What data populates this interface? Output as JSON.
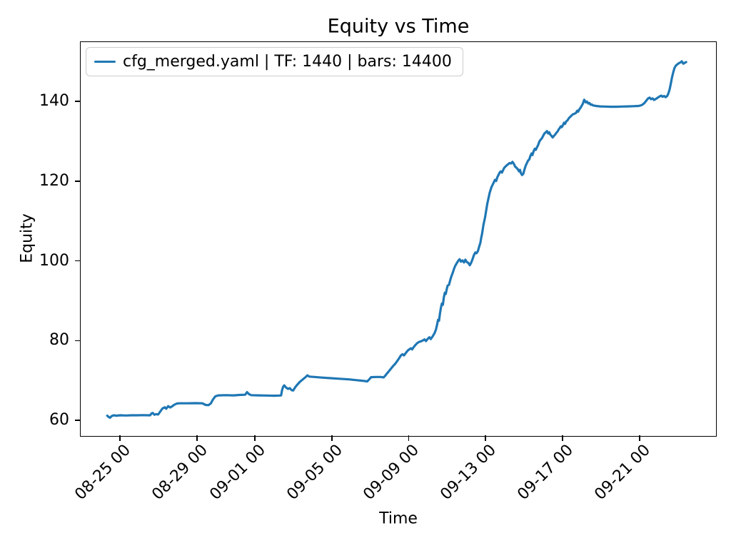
{
  "chart_data": {
    "type": "line",
    "title": "Equity vs Time",
    "xlabel": "Time",
    "ylabel": "Equity",
    "grid": false,
    "legend_position": "upper left",
    "line_color": "#1f77b4",
    "x_unit": "days relative to the 08-25 00 tick",
    "xlim": [
      -2.05,
      30.98
    ],
    "ylim": [
      56.3,
      154.8
    ],
    "x_ticks": [
      {
        "t": 0,
        "label": "08-25 00"
      },
      {
        "t": 4,
        "label": "08-29 00"
      },
      {
        "t": 7,
        "label": "09-01 00"
      },
      {
        "t": 11,
        "label": "09-05 00"
      },
      {
        "t": 15,
        "label": "09-09 00"
      },
      {
        "t": 19,
        "label": "09-13 00"
      },
      {
        "t": 23,
        "label": "09-17 00"
      },
      {
        "t": 27,
        "label": "09-21 00"
      }
    ],
    "y_ticks": [
      60,
      80,
      100,
      120,
      140
    ],
    "series": [
      {
        "name": "cfg_merged.yaml | TF: 1440 | bars: 14400",
        "color": "#1f77b4",
        "points": [
          [
            -0.67,
            61.2
          ],
          [
            -0.6,
            60.9
          ],
          [
            -0.52,
            60.7
          ],
          [
            -0.44,
            61.1
          ],
          [
            -0.33,
            61.3
          ],
          [
            -0.2,
            61.2
          ],
          [
            0.0,
            61.3
          ],
          [
            0.3,
            61.25
          ],
          [
            0.6,
            61.3
          ],
          [
            0.9,
            61.3
          ],
          [
            1.2,
            61.35
          ],
          [
            1.45,
            61.3
          ],
          [
            1.56,
            61.3
          ],
          [
            1.63,
            61.75
          ],
          [
            1.7,
            61.9
          ],
          [
            1.78,
            61.45
          ],
          [
            1.88,
            61.6
          ],
          [
            1.98,
            61.5
          ],
          [
            2.08,
            62.2
          ],
          [
            2.2,
            63.0
          ],
          [
            2.32,
            63.3
          ],
          [
            2.4,
            62.95
          ],
          [
            2.5,
            63.6
          ],
          [
            2.6,
            63.25
          ],
          [
            2.72,
            63.6
          ],
          [
            2.8,
            63.9
          ],
          [
            2.95,
            64.25
          ],
          [
            3.1,
            64.3
          ],
          [
            3.5,
            64.3
          ],
          [
            3.9,
            64.35
          ],
          [
            4.27,
            64.3
          ],
          [
            4.45,
            63.9
          ],
          [
            4.6,
            63.85
          ],
          [
            4.72,
            64.3
          ],
          [
            4.82,
            65.2
          ],
          [
            4.95,
            66.05
          ],
          [
            5.1,
            66.3
          ],
          [
            5.5,
            66.35
          ],
          [
            5.9,
            66.3
          ],
          [
            6.2,
            66.4
          ],
          [
            6.5,
            66.45
          ],
          [
            6.6,
            67.1
          ],
          [
            6.7,
            66.6
          ],
          [
            6.82,
            66.35
          ],
          [
            7.2,
            66.3
          ],
          [
            7.6,
            66.25
          ],
          [
            8.0,
            66.2
          ],
          [
            8.3,
            66.25
          ],
          [
            8.37,
            66.3
          ],
          [
            8.42,
            67.6
          ],
          [
            8.47,
            68.4
          ],
          [
            8.53,
            68.8
          ],
          [
            8.62,
            68.3
          ],
          [
            8.73,
            67.9
          ],
          [
            8.82,
            68.1
          ],
          [
            8.92,
            67.6
          ],
          [
            9.0,
            67.5
          ],
          [
            9.1,
            68.3
          ],
          [
            9.2,
            68.9
          ],
          [
            9.35,
            69.7
          ],
          [
            9.5,
            70.3
          ],
          [
            9.65,
            70.9
          ],
          [
            9.73,
            71.3
          ],
          [
            9.85,
            71.0
          ],
          [
            10.1,
            70.9
          ],
          [
            10.5,
            70.75
          ],
          [
            10.95,
            70.6
          ],
          [
            11.4,
            70.45
          ],
          [
            11.9,
            70.3
          ],
          [
            12.3,
            70.1
          ],
          [
            12.6,
            69.95
          ],
          [
            12.85,
            69.8
          ],
          [
            12.95,
            70.3
          ],
          [
            13.05,
            70.85
          ],
          [
            13.3,
            70.9
          ],
          [
            13.55,
            70.9
          ],
          [
            13.7,
            70.8
          ],
          [
            13.78,
            71.2
          ],
          [
            13.88,
            71.8
          ],
          [
            14.0,
            72.5
          ],
          [
            14.1,
            73.1
          ],
          [
            14.2,
            73.7
          ],
          [
            14.3,
            74.2
          ],
          [
            14.42,
            75.0
          ],
          [
            14.52,
            75.7
          ],
          [
            14.6,
            76.3
          ],
          [
            14.68,
            76.6
          ],
          [
            14.76,
            76.3
          ],
          [
            14.85,
            76.9
          ],
          [
            14.95,
            77.5
          ],
          [
            15.05,
            77.9
          ],
          [
            15.12,
            78.1
          ],
          [
            15.18,
            77.8
          ],
          [
            15.25,
            78.3
          ],
          [
            15.35,
            78.9
          ],
          [
            15.45,
            79.4
          ],
          [
            15.55,
            79.7
          ],
          [
            15.65,
            79.85
          ],
          [
            15.75,
            80.1
          ],
          [
            15.83,
            80.3
          ],
          [
            15.9,
            79.9
          ],
          [
            16.0,
            80.5
          ],
          [
            16.08,
            80.85
          ],
          [
            16.15,
            80.4
          ],
          [
            16.25,
            81.1
          ],
          [
            16.35,
            81.9
          ],
          [
            16.42,
            82.8
          ],
          [
            16.48,
            84.0
          ],
          [
            16.53,
            85.2
          ],
          [
            16.58,
            85.0
          ],
          [
            16.63,
            86.8
          ],
          [
            16.68,
            88.3
          ],
          [
            16.73,
            89.3
          ],
          [
            16.78,
            89.0
          ],
          [
            16.83,
            90.8
          ],
          [
            16.88,
            92.0
          ],
          [
            16.93,
            91.7
          ],
          [
            16.98,
            92.9
          ],
          [
            17.03,
            93.8
          ],
          [
            17.1,
            94.0
          ],
          [
            17.17,
            95.3
          ],
          [
            17.23,
            96.2
          ],
          [
            17.3,
            97.1
          ],
          [
            17.36,
            98.0
          ],
          [
            17.42,
            98.7
          ],
          [
            17.5,
            99.4
          ],
          [
            17.58,
            100.0
          ],
          [
            17.65,
            100.4
          ],
          [
            17.72,
            99.8
          ],
          [
            17.8,
            100.1
          ],
          [
            17.88,
            99.6
          ],
          [
            17.95,
            100.3
          ],
          [
            18.02,
            99.7
          ],
          [
            18.1,
            99.5
          ],
          [
            18.18,
            98.9
          ],
          [
            18.25,
            99.5
          ],
          [
            18.32,
            100.4
          ],
          [
            18.4,
            101.5
          ],
          [
            18.47,
            102.1
          ],
          [
            18.53,
            101.9
          ],
          [
            18.6,
            102.4
          ],
          [
            18.67,
            103.6
          ],
          [
            18.73,
            104.5
          ],
          [
            18.77,
            105.7
          ],
          [
            18.81,
            106.6
          ],
          [
            18.85,
            107.8
          ],
          [
            18.89,
            109.0
          ],
          [
            18.93,
            109.9
          ],
          [
            18.97,
            110.8
          ],
          [
            19.01,
            112.0
          ],
          [
            19.05,
            113.1
          ],
          [
            19.09,
            114.3
          ],
          [
            19.13,
            115.2
          ],
          [
            19.17,
            116.1
          ],
          [
            19.21,
            117.0
          ],
          [
            19.25,
            117.6
          ],
          [
            19.31,
            118.5
          ],
          [
            19.37,
            119.1
          ],
          [
            19.43,
            119.7
          ],
          [
            19.49,
            120.3
          ],
          [
            19.55,
            120.0
          ],
          [
            19.61,
            120.9
          ],
          [
            19.67,
            121.5
          ],
          [
            19.73,
            122.1
          ],
          [
            19.79,
            122.4
          ],
          [
            19.85,
            122.1
          ],
          [
            19.91,
            122.7
          ],
          [
            19.97,
            123.3
          ],
          [
            20.03,
            123.6
          ],
          [
            20.09,
            123.9
          ],
          [
            20.17,
            124.2
          ],
          [
            20.25,
            124.5
          ],
          [
            20.33,
            124.4
          ],
          [
            20.4,
            124.8
          ],
          [
            20.47,
            124.3
          ],
          [
            20.54,
            123.6
          ],
          [
            20.61,
            123.3
          ],
          [
            20.68,
            122.9
          ],
          [
            20.74,
            122.4
          ],
          [
            20.79,
            122.8
          ],
          [
            20.84,
            121.9
          ],
          [
            20.9,
            121.5
          ],
          [
            20.96,
            121.8
          ],
          [
            21.03,
            123.0
          ],
          [
            21.09,
            123.9
          ],
          [
            21.15,
            124.5
          ],
          [
            21.21,
            125.1
          ],
          [
            21.27,
            125.4
          ],
          [
            21.33,
            126.3
          ],
          [
            21.39,
            126.9
          ],
          [
            21.44,
            126.5
          ],
          [
            21.5,
            127.5
          ],
          [
            21.56,
            128.1
          ],
          [
            21.61,
            127.8
          ],
          [
            21.67,
            128.4
          ],
          [
            21.73,
            129.0
          ],
          [
            21.8,
            129.9
          ],
          [
            21.87,
            130.4
          ],
          [
            21.93,
            130.7
          ],
          [
            21.99,
            131.3
          ],
          [
            22.06,
            131.9
          ],
          [
            22.13,
            132.2
          ],
          [
            22.19,
            132.5
          ],
          [
            22.25,
            131.9
          ],
          [
            22.31,
            132.2
          ],
          [
            22.37,
            131.6
          ],
          [
            22.43,
            131.3
          ],
          [
            22.49,
            130.9
          ],
          [
            22.55,
            131.3
          ],
          [
            22.61,
            131.6
          ],
          [
            22.67,
            132.0
          ],
          [
            22.74,
            132.4
          ],
          [
            22.8,
            132.9
          ],
          [
            22.86,
            133.3
          ],
          [
            22.91,
            133.7
          ],
          [
            22.96,
            133.5
          ],
          [
            23.02,
            134.0
          ],
          [
            23.08,
            134.6
          ],
          [
            23.13,
            134.3
          ],
          [
            23.19,
            134.9
          ],
          [
            23.26,
            135.2
          ],
          [
            23.34,
            135.8
          ],
          [
            23.41,
            136.1
          ],
          [
            23.47,
            136.4
          ],
          [
            23.54,
            136.7
          ],
          [
            23.62,
            136.85
          ],
          [
            23.7,
            137.05
          ],
          [
            23.76,
            137.6
          ],
          [
            23.81,
            137.35
          ],
          [
            23.87,
            137.9
          ],
          [
            23.93,
            138.3
          ],
          [
            23.99,
            138.8
          ],
          [
            24.05,
            139.3
          ],
          [
            24.13,
            140.35
          ],
          [
            24.21,
            139.7
          ],
          [
            24.27,
            139.9
          ],
          [
            24.34,
            139.4
          ],
          [
            24.4,
            139.55
          ],
          [
            24.46,
            139.1
          ],
          [
            24.52,
            139.2
          ],
          [
            24.58,
            138.95
          ],
          [
            24.75,
            138.8
          ],
          [
            24.95,
            138.7
          ],
          [
            25.2,
            138.65
          ],
          [
            25.5,
            138.6
          ],
          [
            25.8,
            138.6
          ],
          [
            26.1,
            138.65
          ],
          [
            26.4,
            138.7
          ],
          [
            26.7,
            138.75
          ],
          [
            26.95,
            138.8
          ],
          [
            27.05,
            138.9
          ],
          [
            27.15,
            139.1
          ],
          [
            27.25,
            139.5
          ],
          [
            27.35,
            140.1
          ],
          [
            27.45,
            140.7
          ],
          [
            27.53,
            140.9
          ],
          [
            27.6,
            140.5
          ],
          [
            27.68,
            140.7
          ],
          [
            27.76,
            140.3
          ],
          [
            27.85,
            140.55
          ],
          [
            27.95,
            140.9
          ],
          [
            28.05,
            141.2
          ],
          [
            28.13,
            141.4
          ],
          [
            28.2,
            141.1
          ],
          [
            28.28,
            141.3
          ],
          [
            28.36,
            141.0
          ],
          [
            28.44,
            141.3
          ],
          [
            28.5,
            141.9
          ],
          [
            28.57,
            143.0
          ],
          [
            28.63,
            144.4
          ],
          [
            28.69,
            145.9
          ],
          [
            28.76,
            147.3
          ],
          [
            28.82,
            148.3
          ],
          [
            28.89,
            148.9
          ],
          [
            28.96,
            149.2
          ],
          [
            29.05,
            149.5
          ],
          [
            29.13,
            149.7
          ],
          [
            29.2,
            150.0
          ],
          [
            29.28,
            149.4
          ],
          [
            29.35,
            149.6
          ],
          [
            29.43,
            149.8
          ]
        ]
      }
    ]
  }
}
